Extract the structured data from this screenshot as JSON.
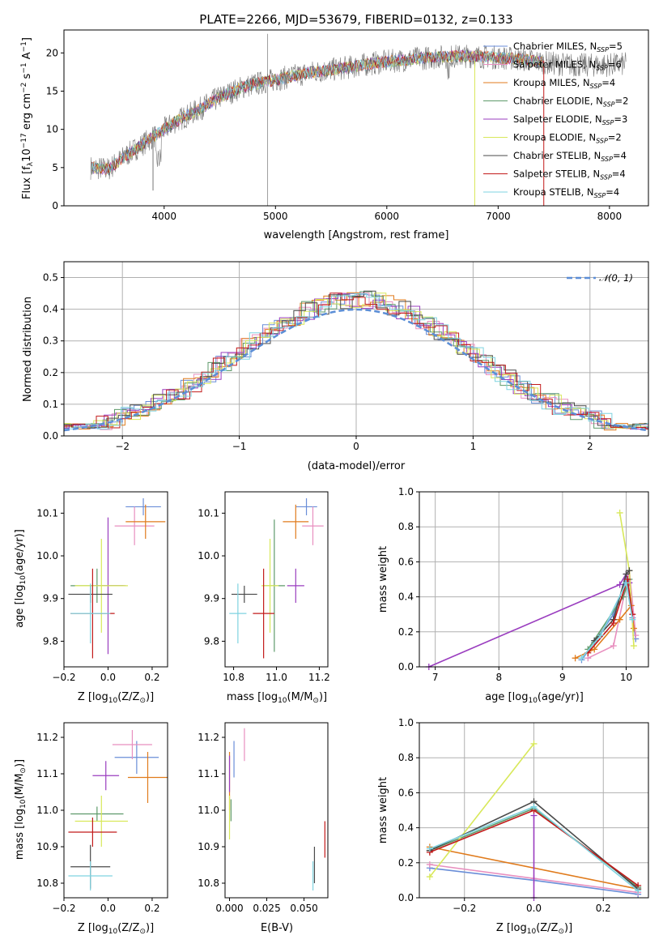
{
  "figure": {
    "title": "PLATE=2266, MJD=53679, FIBERID=0132, z=0.133"
  },
  "models": [
    {
      "name": "Chabrier MILES",
      "nssp": "5",
      "color": "#6a8ed8"
    },
    {
      "name": "Salpeter MILES",
      "nssp": "6",
      "color": "#e88fbf"
    },
    {
      "name": "Kroupa MILES",
      "nssp": "4",
      "color": "#e07b1c"
    },
    {
      "name": "Chabrier ELODIE",
      "nssp": "2",
      "color": "#5e9a6a"
    },
    {
      "name": "Salpeter ELODIE",
      "nssp": "3",
      "color": "#9a3dbf"
    },
    {
      "name": "Kroupa ELODIE",
      "nssp": "2",
      "color": "#d8e85a"
    },
    {
      "name": "Chabrier STELIB",
      "nssp": "4",
      "color": "#4a4a4a"
    },
    {
      "name": "Salpeter STELIB",
      "nssp": "4",
      "color": "#c21a1a"
    },
    {
      "name": "Kroupa STELIB",
      "nssp": "4",
      "color": "#7fd3e0"
    }
  ],
  "chart_data": [
    {
      "type": "line",
      "title": "PLATE=2266, MJD=53679, FIBERID=0132, z=0.133",
      "xlabel": "wavelength [Angstrom, rest frame]",
      "ylabel": "Flux [f_λ 10^-17 erg cm^-2 s^-1 A^-1]",
      "xlim": [
        3100,
        8350
      ],
      "ylim": [
        0,
        23
      ],
      "xticks": [
        4000,
        5000,
        6000,
        7000,
        8000
      ],
      "yticks": [
        0,
        5,
        10,
        15,
        20
      ],
      "data_spectrum": {
        "x": [
          3350,
          3500,
          3650,
          3800,
          3950,
          4100,
          4300,
          4500,
          4700,
          4900,
          5100,
          5300,
          5500,
          5700,
          5900,
          6100,
          6300,
          6500,
          6700,
          6900,
          7100,
          7300,
          7500,
          7700,
          7900,
          8100
        ],
        "y": [
          5.0,
          4.8,
          6.5,
          8.0,
          9.5,
          11.0,
          12.5,
          14.2,
          15.5,
          16.2,
          16.8,
          17.4,
          17.8,
          18.2,
          18.7,
          19.0,
          19.3,
          19.5,
          19.6,
          19.5,
          19.3,
          19.0,
          18.6,
          18.4,
          18.4,
          18.5
        ]
      }
    },
    {
      "type": "bar",
      "xlabel": "(data-model)/error",
      "ylabel": "Normed distribution",
      "xlim": [
        -2.5,
        2.5
      ],
      "ylim": [
        0,
        0.55
      ],
      "xticks": [
        -2,
        -1,
        0,
        1,
        2
      ],
      "yticks": [
        0.0,
        0.1,
        0.2,
        0.3,
        0.4,
        0.5
      ],
      "grid": true,
      "legend": "top-right",
      "reference_curve": "N(0,1)"
    },
    {
      "type": "scatter",
      "xlabel": "Z [log10(Z/Z⊙)]",
      "ylabel": "age [log10(age/yr)]",
      "xlim": [
        -0.2,
        0.27
      ],
      "ylim": [
        9.74,
        10.15
      ],
      "xticks": [
        -0.2,
        0.0,
        0.2
      ],
      "yticks": [
        9.8,
        9.9,
        10.0,
        10.1
      ],
      "points": [
        {
          "x": 0.16,
          "y": 10.115,
          "xe": 0.08,
          "ye": 0.02
        },
        {
          "x": 0.12,
          "y": 10.07,
          "xe": 0.09,
          "ye": 0.045
        },
        {
          "x": 0.17,
          "y": 10.08,
          "xe": 0.09,
          "ye": 0.04
        },
        {
          "x": -0.05,
          "y": 9.93,
          "xe": 0.12,
          "ye": 0.04
        },
        {
          "x": 0.0,
          "y": 9.93,
          "xe": 0.08,
          "ye": 0.16
        },
        {
          "x": -0.03,
          "y": 9.93,
          "xe": 0.12,
          "ye": 0.11
        },
        {
          "x": -0.08,
          "y": 9.91,
          "xe": 0.1,
          "ye": 0.02
        },
        {
          "x": -0.07,
          "y": 9.865,
          "xe": 0.1,
          "ye": 0.105
        },
        {
          "x": -0.08,
          "y": 9.865,
          "xe": 0.09,
          "ye": 0.07
        }
      ]
    },
    {
      "type": "scatter",
      "xlabel": "mass [log10(M/M⊙)]",
      "ylabel": "",
      "xlim": [
        10.76,
        11.24
      ],
      "ylim": [
        9.74,
        10.15
      ],
      "xticks": [
        10.8,
        11.0,
        11.2
      ],
      "yticks": [
        9.8,
        9.9,
        10.0,
        10.1
      ],
      "points": [
        {
          "x": 11.14,
          "y": 10.115,
          "xe": 0.05,
          "ye": 0.02
        },
        {
          "x": 11.17,
          "y": 10.07,
          "xe": 0.05,
          "ye": 0.045
        },
        {
          "x": 11.09,
          "y": 10.08,
          "xe": 0.06,
          "ye": 0.04
        },
        {
          "x": 10.99,
          "y": 9.93,
          "xe": 0.05,
          "ye": 0.155
        },
        {
          "x": 11.09,
          "y": 9.93,
          "xe": 0.04,
          "ye": 0.04
        },
        {
          "x": 10.97,
          "y": 9.93,
          "xe": 0.04,
          "ye": 0.11
        },
        {
          "x": 10.85,
          "y": 9.91,
          "xe": 0.06,
          "ye": 0.02
        },
        {
          "x": 10.94,
          "y": 9.865,
          "xe": 0.05,
          "ye": 0.105
        },
        {
          "x": 10.82,
          "y": 9.865,
          "xe": 0.04,
          "ye": 0.07
        }
      ]
    },
    {
      "type": "line",
      "xlabel": "age [log10(age/yr)]",
      "ylabel": "mass weight",
      "xlim": [
        6.75,
        10.35
      ],
      "ylim": [
        0,
        1.0
      ],
      "xticks": [
        7,
        8,
        9,
        10
      ],
      "yticks": [
        0.0,
        0.2,
        0.4,
        0.6,
        0.8,
        1.0
      ],
      "grid": true,
      "series": [
        {
          "x": [
            9.3,
            9.5,
            9.8,
            10.0,
            10.1,
            10.15
          ],
          "y": [
            0.04,
            0.14,
            0.3,
            0.5,
            0.28,
            0.16
          ]
        },
        {
          "x": [
            9.4,
            9.8,
            10.05,
            10.15
          ],
          "y": [
            0.05,
            0.12,
            0.55,
            0.18
          ]
        },
        {
          "x": [
            9.2,
            9.5,
            9.9,
            10.08,
            10.12
          ],
          "y": [
            0.05,
            0.1,
            0.27,
            0.35,
            0.22
          ]
        },
        {
          "x": [
            9.4,
            9.95,
            10.05
          ],
          "y": [
            0.1,
            0.4,
            0.5
          ]
        },
        {
          "x": [
            6.9,
            9.9,
            10.0,
            10.05
          ],
          "y": [
            0.0,
            0.47,
            0.53,
            0.48
          ]
        },
        {
          "x": [
            9.9,
            10.05,
            10.12
          ],
          "y": [
            0.88,
            0.55,
            0.12
          ]
        },
        {
          "x": [
            9.5,
            9.8,
            10.0,
            10.05
          ],
          "y": [
            0.15,
            0.27,
            0.53,
            0.55
          ]
        },
        {
          "x": [
            9.4,
            9.8,
            10.02,
            10.1
          ],
          "y": [
            0.08,
            0.25,
            0.5,
            0.3
          ]
        },
        {
          "x": [
            9.3,
            9.6,
            10.0,
            10.1
          ],
          "y": [
            0.05,
            0.18,
            0.48,
            0.27
          ]
        }
      ]
    },
    {
      "type": "scatter",
      "xlabel": "Z [log10(Z/Z⊙)]",
      "ylabel": "mass [log10(M/M⊙)]",
      "xlim": [
        -0.2,
        0.27
      ],
      "ylim": [
        10.76,
        11.24
      ],
      "xticks": [
        -0.2,
        0.0,
        0.2
      ],
      "yticks": [
        10.8,
        10.9,
        11.0,
        11.1,
        11.2
      ],
      "points": [
        {
          "x": 0.13,
          "y": 11.145,
          "xe": 0.1,
          "ye": 0.045
        },
        {
          "x": 0.11,
          "y": 11.18,
          "xe": 0.09,
          "ye": 0.04
        },
        {
          "x": 0.18,
          "y": 11.09,
          "xe": 0.09,
          "ye": 0.07
        },
        {
          "x": -0.05,
          "y": 10.99,
          "xe": 0.12,
          "ye": 0.02
        },
        {
          "x": -0.01,
          "y": 11.095,
          "xe": 0.06,
          "ye": 0.04
        },
        {
          "x": -0.03,
          "y": 10.97,
          "xe": 0.12,
          "ye": 0.07
        },
        {
          "x": -0.08,
          "y": 10.845,
          "xe": 0.09,
          "ye": 0.06
        },
        {
          "x": -0.07,
          "y": 10.94,
          "xe": 0.11,
          "ye": 0.04
        },
        {
          "x": -0.08,
          "y": 10.82,
          "xe": 0.1,
          "ye": 0.04
        }
      ]
    },
    {
      "type": "scatter",
      "xlabel": "E(B-V)",
      "ylabel": "",
      "xlim": [
        -0.003,
        0.066
      ],
      "ylim": [
        10.76,
        11.24
      ],
      "xticks": [
        0.0,
        0.025,
        0.05
      ],
      "yticks": [
        10.8,
        10.9,
        11.0,
        11.1,
        11.2
      ],
      "points": [
        {
          "x": 0.003,
          "y": 11.14,
          "xe": 0.0,
          "ye": 0.05
        },
        {
          "x": 0.01,
          "y": 11.18,
          "xe": 0.0,
          "ye": 0.045
        },
        {
          "x": 0.0,
          "y": 11.08,
          "xe": 0.0,
          "ye": 0.08
        },
        {
          "x": 0.001,
          "y": 11.0,
          "xe": 0.0,
          "ye": 0.03
        },
        {
          "x": 0.0,
          "y": 11.1,
          "xe": 0.0,
          "ye": 0.05
        },
        {
          "x": 0.0,
          "y": 10.98,
          "xe": 0.0,
          "ye": 0.06
        },
        {
          "x": 0.057,
          "y": 10.85,
          "xe": 0.0,
          "ye": 0.05
        },
        {
          "x": 0.064,
          "y": 10.92,
          "xe": 0.0,
          "ye": 0.05
        },
        {
          "x": 0.056,
          "y": 10.82,
          "xe": 0.0,
          "ye": 0.04
        }
      ]
    },
    {
      "type": "line",
      "xlabel": "Z [log10(Z/Z⊙)]",
      "ylabel": "mass weight",
      "xlim": [
        -0.33,
        0.33
      ],
      "ylim": [
        0,
        1.0
      ],
      "xticks": [
        -0.2,
        0.0,
        0.2
      ],
      "yticks": [
        0.0,
        0.2,
        0.4,
        0.6,
        0.8,
        1.0
      ],
      "grid": true,
      "series": [
        {
          "x": [
            -0.3,
            0.0,
            0.3
          ],
          "y": [
            0.17,
            0.1,
            0.02
          ]
        },
        {
          "x": [
            -0.3,
            0.0,
            0.3
          ],
          "y": [
            0.19,
            0.11,
            0.03
          ]
        },
        {
          "x": [
            -0.3,
            0.3
          ],
          "y": [
            0.29,
            0.05
          ]
        },
        {
          "x": [
            -0.3,
            0.0,
            0.3
          ],
          "y": [
            0.27,
            0.51,
            0.06
          ]
        },
        {
          "x": [
            0.0,
            0.0
          ],
          "y": [
            0.47,
            0.0
          ]
        },
        {
          "x": [
            -0.3,
            0.0
          ],
          "y": [
            0.12,
            0.88
          ]
        },
        {
          "x": [
            -0.3,
            0.0,
            0.3
          ],
          "y": [
            0.27,
            0.55,
            0.05
          ]
        },
        {
          "x": [
            -0.3,
            0.0,
            0.3
          ],
          "y": [
            0.26,
            0.5,
            0.07
          ]
        },
        {
          "x": [
            -0.3,
            0.0,
            0.3
          ],
          "y": [
            0.28,
            0.52,
            0.04
          ]
        }
      ]
    }
  ]
}
